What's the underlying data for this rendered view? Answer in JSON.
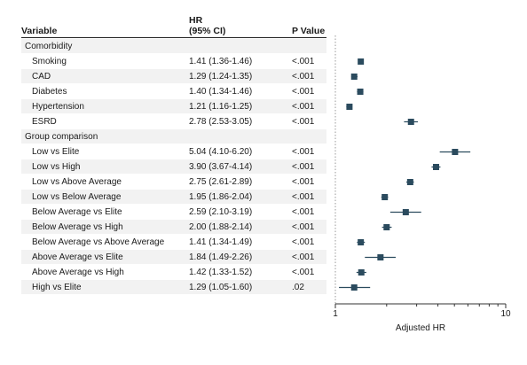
{
  "table": {
    "header": {
      "variable": "Variable",
      "hr_line1": "HR",
      "hr_line2": "(95% CI)",
      "p": "P Value"
    },
    "rows": [
      {
        "kind": "section",
        "label": "Comorbidity"
      },
      {
        "kind": "item",
        "label": "Smoking",
        "hr": "1.41 (1.36-1.46)",
        "p": "<.001"
      },
      {
        "kind": "item",
        "label": "CAD",
        "hr": "1.29 (1.24-1.35)",
        "p": "<.001"
      },
      {
        "kind": "item",
        "label": "Diabetes",
        "hr": "1.40 (1.34-1.46)",
        "p": "<.001"
      },
      {
        "kind": "item",
        "label": "Hypertension",
        "hr": "1.21 (1.16-1.25)",
        "p": "<.001"
      },
      {
        "kind": "item",
        "label": "ESRD",
        "hr": "2.78 (2.53-3.05)",
        "p": "<.001"
      },
      {
        "kind": "section",
        "label": "Group comparison"
      },
      {
        "kind": "item",
        "label": "Low vs Elite",
        "hr": "5.04 (4.10-6.20)",
        "p": "<.001"
      },
      {
        "kind": "item",
        "label": "Low vs High",
        "hr": "3.90 (3.67-4.14)",
        "p": "<.001"
      },
      {
        "kind": "item",
        "label": "Low vs Above Average",
        "hr": "2.75 (2.61-2.89)",
        "p": "<.001"
      },
      {
        "kind": "item",
        "label": "Low vs Below Average",
        "hr": "1.95 (1.86-2.04)",
        "p": "<.001"
      },
      {
        "kind": "item",
        "label": "Below Average vs Elite",
        "hr": "2.59 (2.10-3.19)",
        "p": "<.001"
      },
      {
        "kind": "item",
        "label": "Below Average vs High",
        "hr": "2.00 (1.88-2.14)",
        "p": "<.001"
      },
      {
        "kind": "item",
        "label": "Below Average vs Above Average",
        "hr": "1.41 (1.34-1.49)",
        "p": "<.001"
      },
      {
        "kind": "item",
        "label": "Above Average vs Elite",
        "hr": "1.84 (1.49-2.26)",
        "p": "<.001"
      },
      {
        "kind": "item",
        "label": "Above Average vs High",
        "hr": "1.42 (1.33-1.52)",
        "p": "<.001"
      },
      {
        "kind": "item",
        "label": "High vs Elite",
        "hr": "1.29 (1.05-1.60)",
        "p": ".02"
      }
    ]
  },
  "chart_data": {
    "type": "scatter",
    "title": "",
    "xlabel": "Adjusted HR",
    "ylabel": "",
    "x_scale": "log",
    "xlim": [
      1,
      10
    ],
    "x_tick_labels": [
      "1",
      "10"
    ],
    "grid": false,
    "reference_line_at": 1,
    "marker_color": "#2b4b5e",
    "series": [
      {
        "points": [
          {
            "label": "Smoking",
            "hr": 1.41,
            "lo": 1.36,
            "hi": 1.46
          },
          {
            "label": "CAD",
            "hr": 1.29,
            "lo": 1.24,
            "hi": 1.35
          },
          {
            "label": "Diabetes",
            "hr": 1.4,
            "lo": 1.34,
            "hi": 1.46
          },
          {
            "label": "Hypertension",
            "hr": 1.21,
            "lo": 1.16,
            "hi": 1.25
          },
          {
            "label": "ESRD",
            "hr": 2.78,
            "lo": 2.53,
            "hi": 3.05
          },
          {
            "label": "Low vs Elite",
            "hr": 5.04,
            "lo": 4.1,
            "hi": 6.2
          },
          {
            "label": "Low vs High",
            "hr": 3.9,
            "lo": 3.67,
            "hi": 4.14
          },
          {
            "label": "Low vs Above Average",
            "hr": 2.75,
            "lo": 2.61,
            "hi": 2.89
          },
          {
            "label": "Low vs Below Average",
            "hr": 1.95,
            "lo": 1.86,
            "hi": 2.04
          },
          {
            "label": "Below Average vs Elite",
            "hr": 2.59,
            "lo": 2.1,
            "hi": 3.19
          },
          {
            "label": "Below Average vs High",
            "hr": 2.0,
            "lo": 1.88,
            "hi": 2.14
          },
          {
            "label": "Below Average vs Above Average",
            "hr": 1.41,
            "lo": 1.34,
            "hi": 1.49
          },
          {
            "label": "Above Average vs Elite",
            "hr": 1.84,
            "lo": 1.49,
            "hi": 2.26
          },
          {
            "label": "Above Average vs High",
            "hr": 1.42,
            "lo": 1.33,
            "hi": 1.52
          },
          {
            "label": "High vs Elite",
            "hr": 1.29,
            "lo": 1.05,
            "hi": 1.6
          }
        ]
      }
    ]
  }
}
